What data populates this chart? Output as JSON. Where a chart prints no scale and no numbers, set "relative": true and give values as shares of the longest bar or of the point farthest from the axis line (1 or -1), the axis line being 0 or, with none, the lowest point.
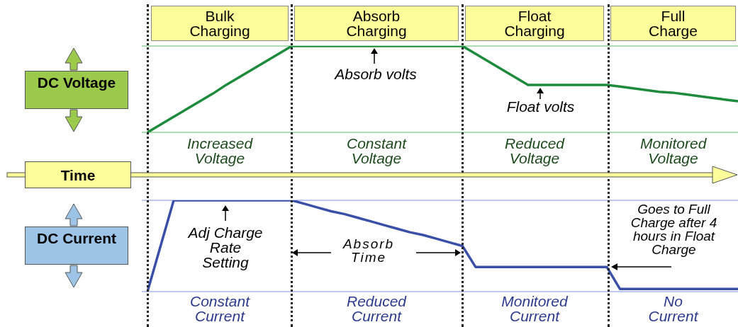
{
  "chart_data": [
    {
      "type": "line",
      "relative": true,
      "grid": true,
      "ylabel": "DC Voltage",
      "xlabel": "Time",
      "categories": [
        null,
        null,
        null,
        null,
        null,
        null,
        null,
        null,
        null,
        null,
        null,
        null,
        null,
        null,
        null,
        null,
        null,
        null,
        null,
        null,
        null,
        null,
        null,
        null,
        null,
        null,
        null,
        null,
        null,
        null,
        null,
        null,
        null,
        null,
        null,
        null,
        null,
        null,
        null,
        null,
        null,
        null,
        null,
        null,
        null,
        null
      ],
      "series": [
        {
          "color": "#1e8a3c",
          "values": [
            0,
            0.09,
            0.18,
            0.27,
            0.36,
            0.45,
            0.55,
            0.64,
            0.73,
            0.82,
            0.91,
            1,
            1,
            1,
            1,
            1,
            1,
            1,
            1,
            1,
            1,
            1,
            1,
            1,
            1,
            0.91,
            0.82,
            0.73,
            0.64,
            0.55,
            0.55,
            0.55,
            0.55,
            0.55,
            0.55,
            0.55,
            0.53,
            0.51,
            0.49,
            0.47,
            0.46,
            0.44,
            0.42,
            0.4,
            0.38,
            0.36
          ]
        }
      ],
      "annotations": [
        "Bulk Charging",
        "Absorb Charging",
        "Float Charging",
        "Full Charge",
        "Absorb volts",
        "Float volts",
        "Increased Voltage",
        "Constant Voltage",
        "Reduced Voltage",
        "Monitored Voltage"
      ]
    },
    {
      "type": "line",
      "relative": true,
      "grid": true,
      "ylabel": "DC Current",
      "categories": [
        null,
        null,
        null,
        null,
        null,
        null,
        null,
        null,
        null,
        null,
        null,
        null,
        null,
        null,
        null,
        null,
        null,
        null,
        null,
        null,
        null,
        null,
        null,
        null,
        null,
        null,
        null,
        null,
        null,
        null,
        null,
        null,
        null,
        null,
        null,
        null,
        null,
        null,
        null,
        null,
        null,
        null,
        null,
        null,
        null,
        null
      ],
      "series": [
        {
          "color": "#3a4fa8",
          "values": [
            0,
            0.5,
            1,
            1,
            1,
            1,
            1,
            1,
            1,
            1,
            1,
            1,
            0.96,
            0.92,
            0.88,
            0.85,
            0.81,
            0.77,
            0.73,
            0.69,
            0.65,
            0.62,
            0.58,
            0.54,
            0.5,
            0.27,
            0.27,
            0.27,
            0.27,
            0.27,
            0.27,
            0.27,
            0.27,
            0.27,
            0.27,
            0.27,
            0.03,
            0.03,
            0.03,
            0.03,
            0.03,
            0.03,
            0.03,
            0.03,
            0.03,
            0.03
          ]
        }
      ],
      "annotations": [
        "Adj Charge Rate Setting",
        "Absorb Time",
        "Goes to Full Charge after 4 hours in Float Charge",
        "Constant Current",
        "Reduced Current",
        "Monitored Current",
        "No Current"
      ]
    }
  ]
}
